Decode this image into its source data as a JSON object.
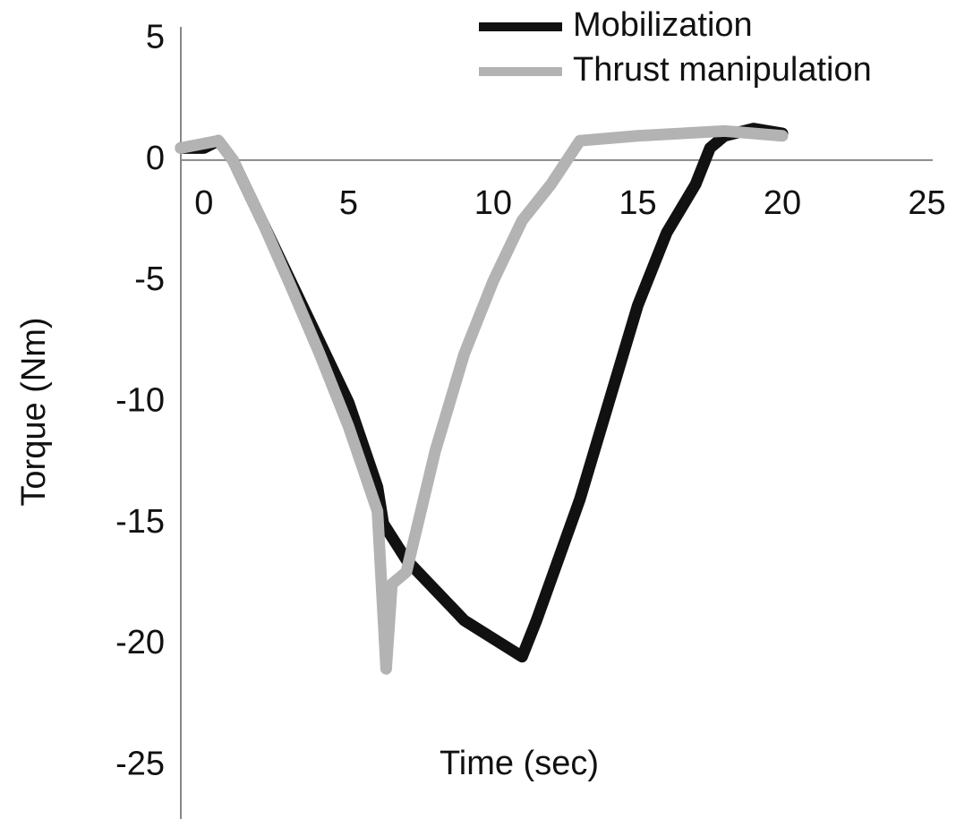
{
  "chart_data": {
    "type": "line",
    "xlabel": "Time (sec)",
    "ylabel": "Torque (Nm)",
    "xlim": [
      -0.8,
      25.2
    ],
    "xticks": [
      0,
      5,
      10,
      15,
      20,
      25
    ],
    "ylim": [
      -27.2,
      5.5
    ],
    "yticks": [
      5,
      0,
      -5,
      -10,
      -15,
      -20,
      -25
    ],
    "series": [
      {
        "name": "Mobilization",
        "color": "#111111",
        "x": [
          -0.8,
          0,
          0.5,
          1,
          2,
          3,
          4,
          5,
          6,
          6.2,
          7,
          9,
          11,
          11.5,
          13,
          14,
          15,
          16,
          17,
          17.5,
          18,
          19,
          20
        ],
        "values": [
          0.5,
          0.5,
          0.8,
          0,
          -2.5,
          -5,
          -7.5,
          -10,
          -13.5,
          -15,
          -16.5,
          -19,
          -20.5,
          -19,
          -14,
          -10,
          -6,
          -3,
          -1,
          0.5,
          1,
          1.3,
          1.1
        ]
      },
      {
        "name": "Thrust manipulation",
        "color": "#b3b3b3",
        "x": [
          -0.8,
          0.5,
          1,
          2,
          3,
          4,
          5,
          6,
          6.3,
          6.5,
          7,
          8,
          9,
          10,
          11,
          12,
          13,
          15,
          18,
          20
        ],
        "values": [
          0.5,
          0.8,
          0,
          -2.5,
          -5.2,
          -8,
          -11,
          -14.5,
          -21,
          -17.5,
          -17,
          -12,
          -8,
          -5,
          -2.5,
          -1,
          0.8,
          1,
          1.2,
          1
        ]
      }
    ]
  }
}
